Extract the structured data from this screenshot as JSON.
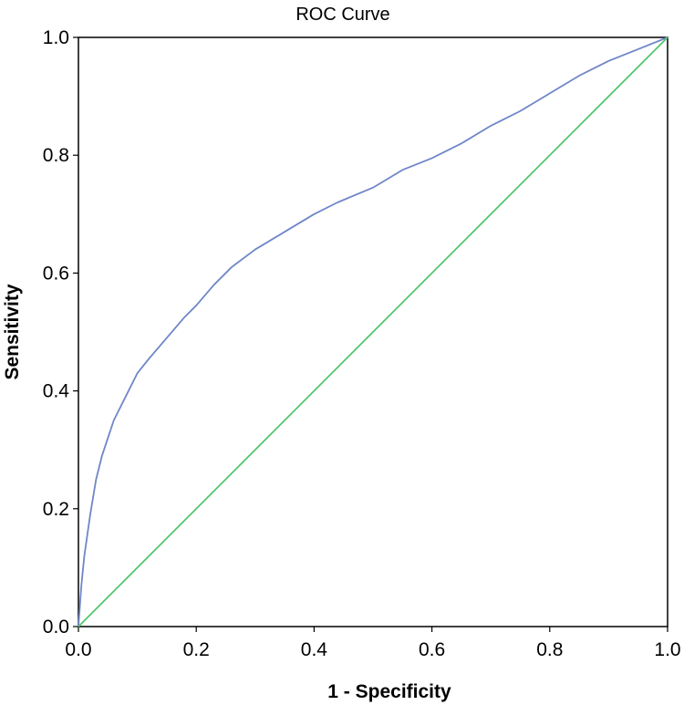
{
  "chart_data": {
    "type": "line",
    "title": "ROC Curve",
    "xlabel": "1 - Specificity",
    "ylabel": "Sensitivity",
    "xlim": [
      0,
      1
    ],
    "ylim": [
      0,
      1
    ],
    "x_ticks": [
      "0.0",
      "0.2",
      "0.4",
      "0.6",
      "0.8",
      "1.0"
    ],
    "y_ticks": [
      "0.0",
      "0.2",
      "0.4",
      "0.6",
      "0.8",
      "1.0"
    ],
    "grid": false,
    "legend": "none",
    "series": [
      {
        "color": "#6f86c8",
        "x": [
          0,
          0.005,
          0.01,
          0.02,
          0.03,
          0.04,
          0.05,
          0.06,
          0.07,
          0.08,
          0.1,
          0.12,
          0.15,
          0.18,
          0.2,
          0.23,
          0.26,
          0.3,
          0.35,
          0.4,
          0.44,
          0.5,
          0.55,
          0.6,
          0.65,
          0.7,
          0.75,
          0.8,
          0.85,
          0.9,
          0.95,
          1.0
        ],
        "y": [
          0,
          0.07,
          0.12,
          0.19,
          0.25,
          0.29,
          0.32,
          0.35,
          0.37,
          0.39,
          0.43,
          0.455,
          0.49,
          0.525,
          0.545,
          0.58,
          0.61,
          0.64,
          0.67,
          0.7,
          0.72,
          0.745,
          0.775,
          0.795,
          0.82,
          0.85,
          0.875,
          0.905,
          0.935,
          0.96,
          0.98,
          1.0
        ]
      },
      {
        "color": "#52c66e",
        "x": [
          0,
          1
        ],
        "y": [
          0,
          1
        ]
      }
    ]
  }
}
